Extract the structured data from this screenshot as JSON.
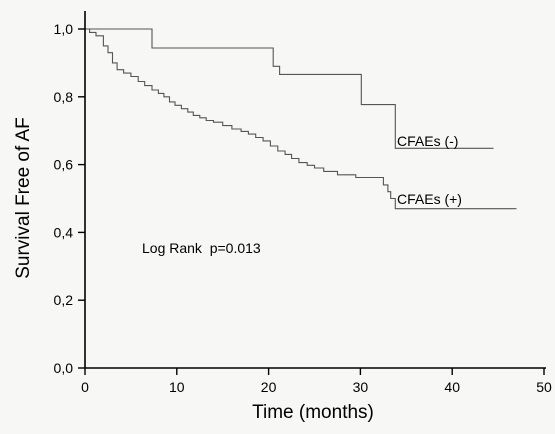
{
  "chart_data": {
    "type": "line",
    "step": true,
    "xlabel": "Time (months)",
    "ylabel": "Survival Free of AF",
    "xlim": [
      0,
      50
    ],
    "ylim": [
      0,
      1
    ],
    "x_ticks": [
      "0",
      "10",
      "20",
      "30",
      "40",
      "50"
    ],
    "y_ticks": [
      "0,0",
      "0,2",
      "0,4",
      "0,6",
      "0,8",
      "1,0"
    ],
    "grid": false,
    "line_color": "#555555",
    "annotation": "Log Rank  p=0.013",
    "series": [
      {
        "name": "CFAEs (-)",
        "x": [
          0,
          7.3,
          7.3,
          20.5,
          20.5,
          21.2,
          21.2,
          30.1,
          30.1,
          33.8,
          33.8,
          44.5
        ],
        "y": [
          1.0,
          1.0,
          0.944,
          0.944,
          0.89,
          0.89,
          0.866,
          0.866,
          0.777,
          0.777,
          0.648,
          0.648
        ]
      },
      {
        "name": "CFAEs (+)",
        "x": [
          0,
          0.5,
          0.5,
          1.2,
          1.2,
          2.0,
          2.0,
          2.5,
          2.5,
          3.0,
          3.0,
          3.5,
          3.5,
          4.2,
          4.2,
          5.0,
          5.0,
          5.8,
          5.8,
          6.5,
          6.5,
          7.3,
          7.3,
          8.0,
          8.0,
          8.6,
          8.6,
          9.2,
          9.2,
          9.8,
          9.8,
          10.5,
          10.5,
          11.2,
          11.2,
          11.8,
          11.8,
          12.5,
          12.5,
          13.2,
          13.2,
          14.0,
          14.0,
          15.0,
          15.0,
          16.0,
          16.0,
          17.0,
          17.0,
          17.8,
          17.8,
          18.6,
          18.6,
          19.4,
          19.4,
          20.2,
          20.2,
          21.0,
          21.0,
          21.8,
          21.8,
          22.5,
          22.5,
          23.3,
          23.3,
          24.2,
          24.2,
          25.0,
          25.0,
          26.0,
          26.0,
          27.5,
          27.5,
          29.5,
          29.5,
          32.5,
          32.5,
          33.0,
          33.0,
          33.3,
          33.3,
          33.8,
          33.8,
          47.0
        ],
        "y": [
          1.0,
          1.0,
          0.99,
          0.99,
          0.98,
          0.98,
          0.95,
          0.95,
          0.93,
          0.93,
          0.9,
          0.9,
          0.88,
          0.88,
          0.87,
          0.87,
          0.86,
          0.86,
          0.845,
          0.845,
          0.833,
          0.833,
          0.82,
          0.82,
          0.81,
          0.81,
          0.8,
          0.8,
          0.785,
          0.785,
          0.775,
          0.775,
          0.765,
          0.765,
          0.755,
          0.755,
          0.745,
          0.745,
          0.738,
          0.738,
          0.73,
          0.73,
          0.725,
          0.725,
          0.715,
          0.715,
          0.705,
          0.705,
          0.698,
          0.698,
          0.69,
          0.69,
          0.68,
          0.68,
          0.67,
          0.67,
          0.655,
          0.655,
          0.64,
          0.64,
          0.63,
          0.63,
          0.618,
          0.618,
          0.606,
          0.606,
          0.598,
          0.598,
          0.59,
          0.59,
          0.58,
          0.58,
          0.57,
          0.57,
          0.562,
          0.562,
          0.54,
          0.54,
          0.52,
          0.52,
          0.5,
          0.5,
          0.47,
          0.47
        ]
      }
    ]
  }
}
